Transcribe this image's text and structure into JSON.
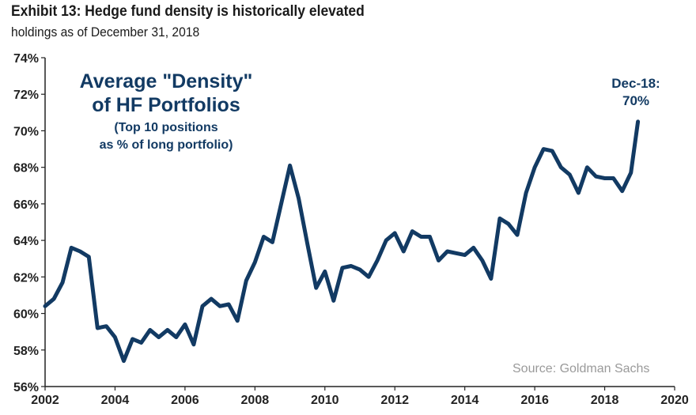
{
  "header": {
    "title": "Exhibit 13: Hedge fund density is historically elevated",
    "subtitle": "holdings as of December 31, 2018"
  },
  "source": "Source: Goldman Sachs",
  "colors": {
    "line": "#123a63",
    "annotation": "#123a63",
    "axis": "#222222"
  },
  "chart_data": {
    "type": "line",
    "title": "",
    "xlabel": "",
    "ylabel": "",
    "xlim": [
      2002,
      2020
    ],
    "ylim": [
      56,
      74
    ],
    "grid": false,
    "x_ticks": [
      "2002",
      "2004",
      "2006",
      "2008",
      "2010",
      "2012",
      "2014",
      "2016",
      "2018",
      "2020"
    ],
    "y_ticks": [
      "56%",
      "58%",
      "60%",
      "62%",
      "64%",
      "66%",
      "68%",
      "70%",
      "72%",
      "74%"
    ],
    "in_chart_label": {
      "line1": "Average \"Density\"",
      "line2": "of HF Portfolios",
      "line3": "(Top 10 positions",
      "line4": "as % of long portfolio)"
    },
    "end_annotation": {
      "line1": "Dec-18:",
      "line2": "70%"
    },
    "series": [
      {
        "x": [
          2002.0,
          2002.25,
          2002.5,
          2002.75,
          2003.0,
          2003.25,
          2003.5,
          2003.75,
          2004.0,
          2004.25,
          2004.5,
          2004.75,
          2005.0,
          2005.25,
          2005.5,
          2005.75,
          2006.0,
          2006.25,
          2006.5,
          2006.75,
          2007.0,
          2007.25,
          2007.5,
          2007.75,
          2008.0,
          2008.25,
          2008.5,
          2008.75,
          2009.0,
          2009.25,
          2009.5,
          2009.75,
          2010.0,
          2010.25,
          2010.5,
          2010.75,
          2011.0,
          2011.25,
          2011.5,
          2011.75,
          2012.0,
          2012.25,
          2012.5,
          2012.75,
          2013.0,
          2013.25,
          2013.5,
          2013.75,
          2014.0,
          2014.25,
          2014.5,
          2014.75,
          2015.0,
          2015.25,
          2015.5,
          2015.75,
          2016.0,
          2016.25,
          2016.5,
          2016.75,
          2017.0,
          2017.25,
          2017.5,
          2017.75,
          2018.0,
          2018.25,
          2018.5,
          2018.75,
          2018.95
        ],
        "values": [
          60.4,
          60.8,
          61.7,
          63.6,
          63.4,
          63.1,
          59.2,
          59.3,
          58.7,
          57.4,
          58.6,
          58.4,
          59.1,
          58.7,
          59.1,
          58.7,
          59.4,
          58.3,
          60.4,
          60.8,
          60.4,
          60.5,
          59.6,
          61.8,
          62.8,
          64.2,
          63.9,
          66.0,
          68.1,
          66.3,
          63.8,
          61.4,
          62.3,
          60.7,
          62.5,
          62.6,
          62.4,
          62.0,
          62.9,
          64.0,
          64.4,
          63.4,
          64.5,
          64.2,
          64.2,
          62.9,
          63.4,
          63.3,
          63.2,
          63.6,
          62.9,
          61.9,
          65.2,
          64.9,
          64.3,
          66.6,
          68.0,
          69.0,
          68.9,
          68.0,
          67.6,
          66.6,
          68.0,
          67.5,
          67.4,
          67.4,
          66.7,
          67.7,
          70.5
        ]
      }
    ]
  }
}
